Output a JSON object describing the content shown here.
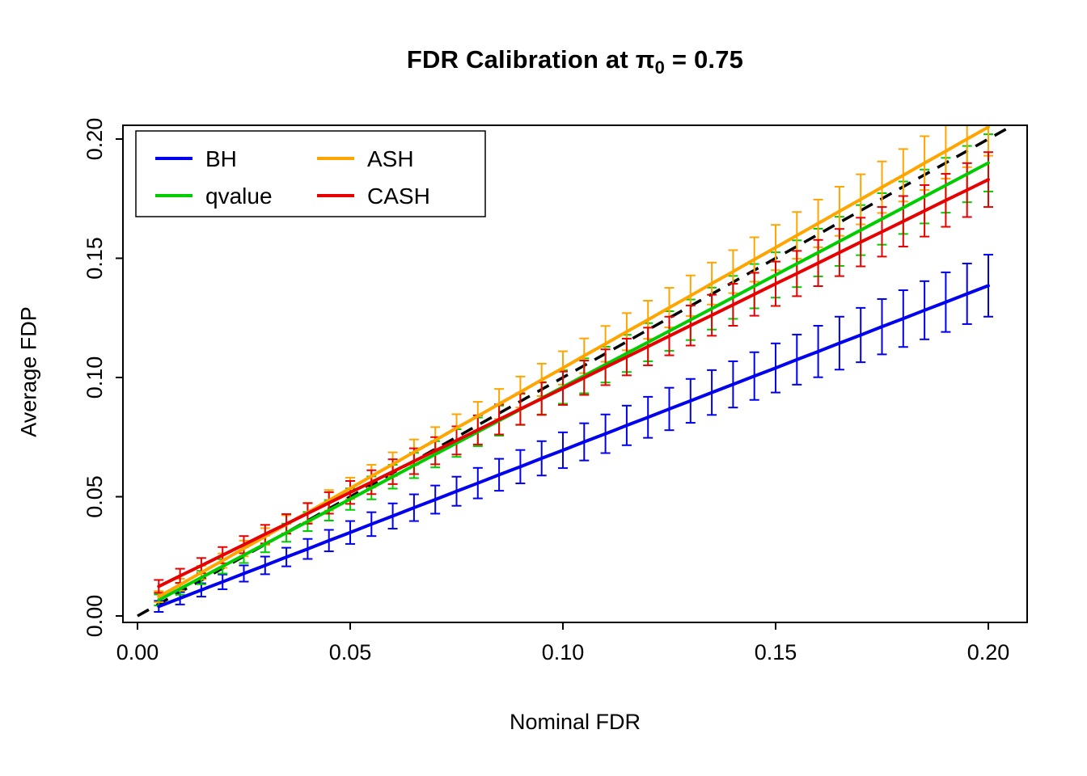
{
  "title": {
    "part1": "FDR Calibration at ",
    "pi_symbol": "π",
    "subscript": "0",
    "part2": " = 0.75"
  },
  "axes": {
    "x_label": "Nominal FDR",
    "y_label": "Average FDP"
  },
  "chart_data": {
    "type": "line",
    "title": "FDR Calibration at π0 = 0.75",
    "xlabel": "Nominal FDR",
    "ylabel": "Average FDP",
    "xlim": [
      0,
      0.21
    ],
    "ylim": [
      0,
      0.208
    ],
    "xticks": [
      0.0,
      0.05,
      0.1,
      0.15,
      0.2
    ],
    "yticks": [
      0.0,
      0.05,
      0.1,
      0.15,
      0.2
    ],
    "grid": false,
    "identity_line": {
      "style": "dashed",
      "color": "#000000",
      "from": 0,
      "to": 0.21
    },
    "legend": {
      "position": "top-left",
      "ncol": 2,
      "entries": [
        "BH",
        "qvalue",
        "ASH",
        "CASH"
      ]
    },
    "x": [
      0.005,
      0.01,
      0.015,
      0.02,
      0.025,
      0.03,
      0.035,
      0.04,
      0.045,
      0.05,
      0.055,
      0.06,
      0.065,
      0.07,
      0.075,
      0.08,
      0.085,
      0.09,
      0.095,
      0.1,
      0.105,
      0.11,
      0.115,
      0.12,
      0.125,
      0.13,
      0.135,
      0.14,
      0.145,
      0.15,
      0.155,
      0.16,
      0.165,
      0.17,
      0.175,
      0.18,
      0.185,
      0.19,
      0.195,
      0.2
    ],
    "series": [
      {
        "name": "BH",
        "color": "#0000EE",
        "values": [
          0.004,
          0.0074,
          0.0109,
          0.0143,
          0.0178,
          0.0212,
          0.0247,
          0.0281,
          0.0316,
          0.035,
          0.0385,
          0.0419,
          0.0454,
          0.0488,
          0.0523,
          0.0557,
          0.0592,
          0.0626,
          0.0661,
          0.0695,
          0.073,
          0.0764,
          0.0799,
          0.0833,
          0.0868,
          0.0902,
          0.0937,
          0.0971,
          0.1006,
          0.104,
          0.1075,
          0.1109,
          0.1144,
          0.1178,
          0.1213,
          0.1247,
          0.1282,
          0.1316,
          0.1351,
          0.1385
        ],
        "err": [
          0.0023,
          0.0026,
          0.0028,
          0.0031,
          0.0034,
          0.0037,
          0.0039,
          0.0042,
          0.0045,
          0.0048,
          0.005,
          0.0053,
          0.0056,
          0.0059,
          0.0061,
          0.0064,
          0.0067,
          0.007,
          0.0072,
          0.0075,
          0.0078,
          0.0081,
          0.0083,
          0.0086,
          0.0089,
          0.0092,
          0.0094,
          0.0097,
          0.01,
          0.0103,
          0.0105,
          0.0108,
          0.0111,
          0.0114,
          0.0116,
          0.0119,
          0.0122,
          0.0125,
          0.0127,
          0.013
        ]
      },
      {
        "name": "qvalue",
        "color": "#00CD00",
        "values": [
          0.0067,
          0.0114,
          0.0161,
          0.0208,
          0.0255,
          0.0302,
          0.0349,
          0.0396,
          0.0443,
          0.049,
          0.0537,
          0.0584,
          0.0631,
          0.0678,
          0.0725,
          0.0772,
          0.0819,
          0.0866,
          0.0913,
          0.096,
          0.1007,
          0.1054,
          0.1101,
          0.1148,
          0.1195,
          0.1242,
          0.1289,
          0.1336,
          0.1383,
          0.143,
          0.1477,
          0.1524,
          0.1571,
          0.1618,
          0.1665,
          0.1712,
          0.1759,
          0.1806,
          0.1853,
          0.19
        ],
        "err": [
          0.0023,
          0.0025,
          0.0028,
          0.003,
          0.0033,
          0.0035,
          0.0038,
          0.004,
          0.0043,
          0.0045,
          0.0048,
          0.005,
          0.0053,
          0.0055,
          0.0058,
          0.006,
          0.0063,
          0.0065,
          0.0068,
          0.007,
          0.0073,
          0.0075,
          0.0078,
          0.008,
          0.0083,
          0.0085,
          0.0088,
          0.009,
          0.0093,
          0.0095,
          0.0098,
          0.01,
          0.0103,
          0.0105,
          0.0108,
          0.011,
          0.0113,
          0.0115,
          0.0118,
          0.012
        ]
      },
      {
        "name": "ASH",
        "color": "#FFA500",
        "values": [
          0.0081,
          0.0131,
          0.0182,
          0.0232,
          0.0283,
          0.0333,
          0.0384,
          0.0434,
          0.0485,
          0.0535,
          0.0586,
          0.0636,
          0.0687,
          0.0737,
          0.0788,
          0.0838,
          0.0889,
          0.0939,
          0.099,
          0.104,
          0.1091,
          0.1141,
          0.1192,
          0.1242,
          0.1293,
          0.1343,
          0.1394,
          0.1444,
          0.1495,
          0.1545,
          0.1596,
          0.1646,
          0.1697,
          0.1747,
          0.1798,
          0.1848,
          0.1899,
          0.1949,
          0.2,
          0.205
        ],
        "err": [
          0.0023,
          0.0025,
          0.0028,
          0.003,
          0.0033,
          0.0035,
          0.0038,
          0.004,
          0.0043,
          0.0045,
          0.0048,
          0.005,
          0.0053,
          0.0055,
          0.0058,
          0.006,
          0.0063,
          0.0065,
          0.0068,
          0.007,
          0.0073,
          0.0075,
          0.0078,
          0.008,
          0.0083,
          0.0085,
          0.0088,
          0.009,
          0.0093,
          0.0095,
          0.0098,
          0.01,
          0.0103,
          0.0105,
          0.0108,
          0.011,
          0.0113,
          0.0115,
          0.0118,
          0.012
        ]
      },
      {
        "name": "CASH",
        "color": "#E60000",
        "values": [
          0.0124,
          0.0168,
          0.0211,
          0.0255,
          0.0299,
          0.0343,
          0.0386,
          0.043,
          0.0474,
          0.0518,
          0.0561,
          0.0605,
          0.0649,
          0.0693,
          0.0736,
          0.078,
          0.0824,
          0.0868,
          0.0911,
          0.0955,
          0.0999,
          0.1043,
          0.1086,
          0.113,
          0.1174,
          0.1218,
          0.1261,
          0.1305,
          0.1349,
          0.1393,
          0.1436,
          0.148,
          0.1524,
          0.1568,
          0.1611,
          0.1655,
          0.1699,
          0.1743,
          0.1786,
          0.183
        ],
        "err": [
          0.0027,
          0.003,
          0.0032,
          0.0034,
          0.0036,
          0.0039,
          0.0041,
          0.0043,
          0.0045,
          0.0048,
          0.005,
          0.0052,
          0.0054,
          0.0057,
          0.0059,
          0.0061,
          0.0063,
          0.0066,
          0.0068,
          0.007,
          0.0072,
          0.0075,
          0.0077,
          0.0079,
          0.0081,
          0.0084,
          0.0086,
          0.0088,
          0.009,
          0.0093,
          0.0095,
          0.0097,
          0.0099,
          0.0102,
          0.0104,
          0.0106,
          0.0108,
          0.0111,
          0.0113,
          0.0115
        ]
      }
    ]
  }
}
